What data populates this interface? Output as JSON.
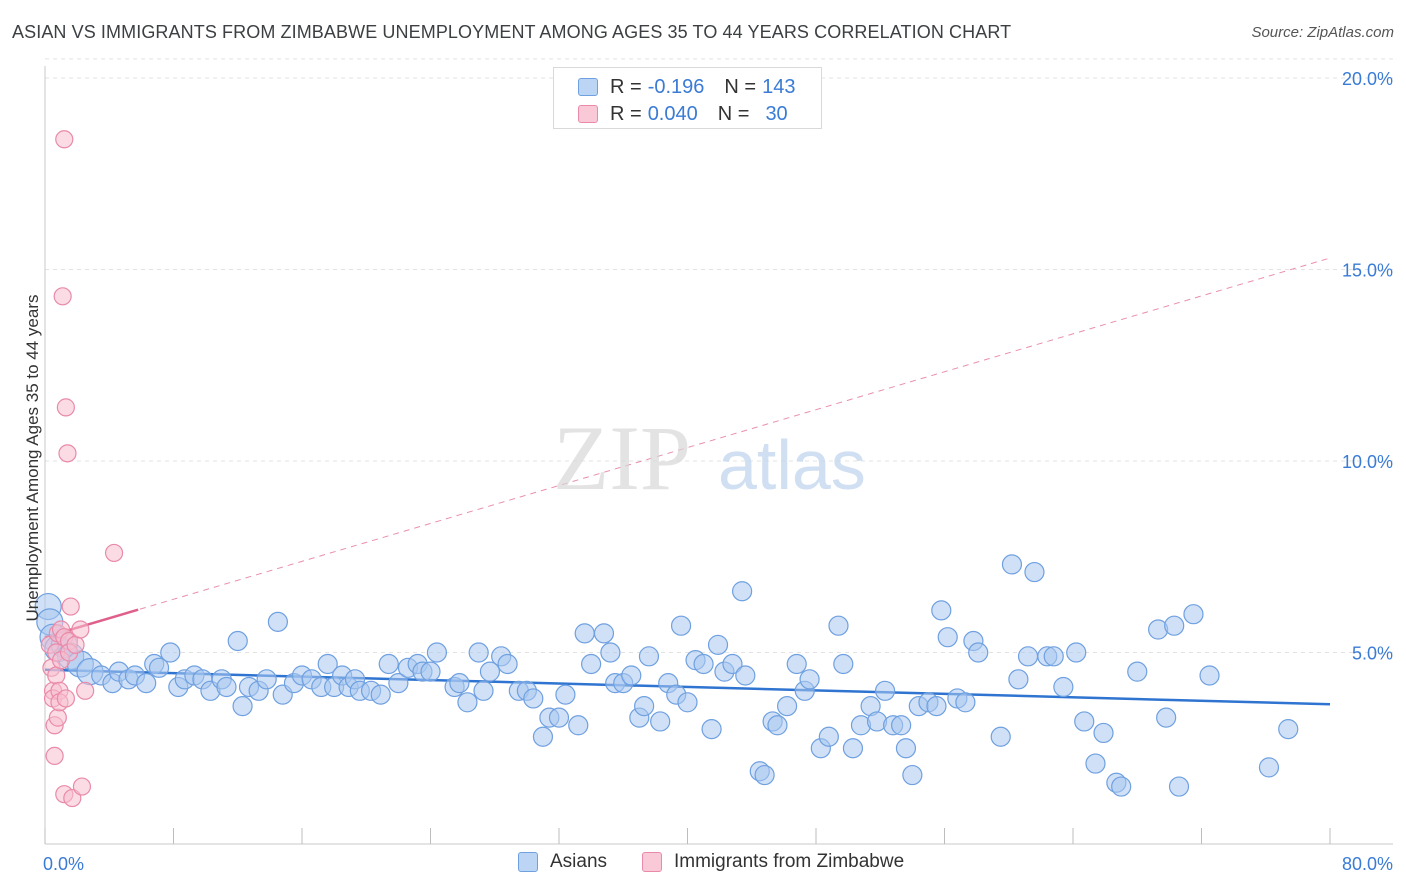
{
  "title": "ASIAN VS IMMIGRANTS FROM ZIMBABWE UNEMPLOYMENT AMONG AGES 35 TO 44 YEARS CORRELATION CHART",
  "source": "Source: ZipAtlas.com",
  "watermark": {
    "zip": "ZIP",
    "atlas": "atlas"
  },
  "legend_top": {
    "rows": [
      {
        "r_label": "R =",
        "r_value": "-0.196",
        "n_label": "N =",
        "n_value": "143",
        "color": "#a9c8f0",
        "border": "#6fa0e0"
      },
      {
        "r_label": "R =",
        "r_value": "0.040",
        "n_label": "N =",
        "n_value": "30",
        "color": "#f7bfd0",
        "border": "#e98aa9"
      }
    ]
  },
  "chart_data": {
    "type": "scatter",
    "title": "ASIAN VS IMMIGRANTS FROM ZIMBABWE UNEMPLOYMENT AMONG AGES 35 TO 44 YEARS CORRELATION CHART",
    "xlabel": "",
    "ylabel": "Unemployment Among Ages 35 to 44 years",
    "xlim": [
      0,
      80
    ],
    "ylim": [
      0,
      20.5
    ],
    "x_tick_labels": [
      "0.0%",
      "80.0%"
    ],
    "y_ticks": [
      5,
      10,
      15,
      20
    ],
    "y_tick_labels": [
      "5.0%",
      "10.0%",
      "15.0%",
      "20.0%"
    ],
    "grid": true,
    "legend_position": "bottom",
    "series": [
      {
        "name": "Asians",
        "color": "#a9c8f0",
        "stroke": "#6fa0e0",
        "trend": {
          "x": [
            0,
            80
          ],
          "y": [
            4.55,
            3.65
          ],
          "color": "#2f74d0",
          "style": "solid"
        },
        "points": [
          [
            0.2,
            6.2
          ],
          [
            0.3,
            5.8
          ],
          [
            0.5,
            5.4
          ],
          [
            0.8,
            5.1
          ],
          [
            1.2,
            5.2
          ],
          [
            1.6,
            4.9
          ],
          [
            2.2,
            4.7
          ],
          [
            2.8,
            4.5
          ],
          [
            3.5,
            4.4
          ],
          [
            4.2,
            4.2
          ],
          [
            4.6,
            4.5
          ],
          [
            5.2,
            4.3
          ],
          [
            5.6,
            4.4
          ],
          [
            6.3,
            4.2
          ],
          [
            6.8,
            4.7
          ],
          [
            7.1,
            4.6
          ],
          [
            7.8,
            5.0
          ],
          [
            8.3,
            4.1
          ],
          [
            8.7,
            4.3
          ],
          [
            9.3,
            4.4
          ],
          [
            9.8,
            4.3
          ],
          [
            10.3,
            4.0
          ],
          [
            11.0,
            4.3
          ],
          [
            11.3,
            4.1
          ],
          [
            12.0,
            5.3
          ],
          [
            12.3,
            3.6
          ],
          [
            12.7,
            4.1
          ],
          [
            13.3,
            4.0
          ],
          [
            13.8,
            4.3
          ],
          [
            14.5,
            5.8
          ],
          [
            14.8,
            3.9
          ],
          [
            15.5,
            4.2
          ],
          [
            16.0,
            4.4
          ],
          [
            16.6,
            4.3
          ],
          [
            17.2,
            4.1
          ],
          [
            17.6,
            4.7
          ],
          [
            18.0,
            4.1
          ],
          [
            18.5,
            4.4
          ],
          [
            18.9,
            4.1
          ],
          [
            19.3,
            4.3
          ],
          [
            19.6,
            4.0
          ],
          [
            20.3,
            4.0
          ],
          [
            20.9,
            3.9
          ],
          [
            21.4,
            4.7
          ],
          [
            22.0,
            4.2
          ],
          [
            22.6,
            4.6
          ],
          [
            23.2,
            4.7
          ],
          [
            23.5,
            4.5
          ],
          [
            24.0,
            4.5
          ],
          [
            24.4,
            5.0
          ],
          [
            25.5,
            4.1
          ],
          [
            25.8,
            4.2
          ],
          [
            26.3,
            3.7
          ],
          [
            27.0,
            5.0
          ],
          [
            27.3,
            4.0
          ],
          [
            27.7,
            4.5
          ],
          [
            28.4,
            4.9
          ],
          [
            28.8,
            4.7
          ],
          [
            29.5,
            4.0
          ],
          [
            30.0,
            4.0
          ],
          [
            30.4,
            3.8
          ],
          [
            31.0,
            2.8
          ],
          [
            31.4,
            3.3
          ],
          [
            32.0,
            3.3
          ],
          [
            32.4,
            3.9
          ],
          [
            33.2,
            3.1
          ],
          [
            33.6,
            5.5
          ],
          [
            34.0,
            4.7
          ],
          [
            34.8,
            5.5
          ],
          [
            35.2,
            5.0
          ],
          [
            35.5,
            4.2
          ],
          [
            36.0,
            4.2
          ],
          [
            36.5,
            4.4
          ],
          [
            37.0,
            3.3
          ],
          [
            37.3,
            3.6
          ],
          [
            37.6,
            4.9
          ],
          [
            38.3,
            3.2
          ],
          [
            38.8,
            4.2
          ],
          [
            39.3,
            3.9
          ],
          [
            39.6,
            5.7
          ],
          [
            40.0,
            3.7
          ],
          [
            40.5,
            4.8
          ],
          [
            41.0,
            4.7
          ],
          [
            41.5,
            3.0
          ],
          [
            41.9,
            5.2
          ],
          [
            42.3,
            4.5
          ],
          [
            42.8,
            4.7
          ],
          [
            43.4,
            6.6
          ],
          [
            43.6,
            4.4
          ],
          [
            44.5,
            1.9
          ],
          [
            44.8,
            1.8
          ],
          [
            45.3,
            3.2
          ],
          [
            45.6,
            3.1
          ],
          [
            46.2,
            3.6
          ],
          [
            46.8,
            4.7
          ],
          [
            47.3,
            4.0
          ],
          [
            47.6,
            4.3
          ],
          [
            48.3,
            2.5
          ],
          [
            48.8,
            2.8
          ],
          [
            49.4,
            5.7
          ],
          [
            49.7,
            4.7
          ],
          [
            50.3,
            2.5
          ],
          [
            50.8,
            3.1
          ],
          [
            51.4,
            3.6
          ],
          [
            51.8,
            3.2
          ],
          [
            52.3,
            4.0
          ],
          [
            52.8,
            3.1
          ],
          [
            53.3,
            3.1
          ],
          [
            53.6,
            2.5
          ],
          [
            54.0,
            1.8
          ],
          [
            54.4,
            3.6
          ],
          [
            55.0,
            3.7
          ],
          [
            55.5,
            3.6
          ],
          [
            55.8,
            6.1
          ],
          [
            56.2,
            5.4
          ],
          [
            56.8,
            3.8
          ],
          [
            57.3,
            3.7
          ],
          [
            57.8,
            5.3
          ],
          [
            58.1,
            5.0
          ],
          [
            59.5,
            2.8
          ],
          [
            60.2,
            7.3
          ],
          [
            60.6,
            4.3
          ],
          [
            61.2,
            4.9
          ],
          [
            61.6,
            7.1
          ],
          [
            62.4,
            4.9
          ],
          [
            62.8,
            4.9
          ],
          [
            63.4,
            4.1
          ],
          [
            64.2,
            5.0
          ],
          [
            64.7,
            3.2
          ],
          [
            65.4,
            2.1
          ],
          [
            65.9,
            2.9
          ],
          [
            66.7,
            1.6
          ],
          [
            67.0,
            1.5
          ],
          [
            68.0,
            4.5
          ],
          [
            69.3,
            5.6
          ],
          [
            69.8,
            3.3
          ],
          [
            70.3,
            5.7
          ],
          [
            70.6,
            1.5
          ],
          [
            71.5,
            6.0
          ],
          [
            72.5,
            4.4
          ],
          [
            76.2,
            2.0
          ],
          [
            77.4,
            3.0
          ]
        ]
      },
      {
        "name": "Immigrants from Zimbabwe",
        "color": "#f7bfd0",
        "stroke": "#e98aa9",
        "trend": {
          "x": [
            0,
            80
          ],
          "y": [
            5.4,
            15.3
          ],
          "color": "#e0608c",
          "style": "dashed",
          "solid_until_x": 5.8
        },
        "points": [
          [
            0.3,
            5.2
          ],
          [
            0.4,
            4.6
          ],
          [
            0.5,
            4.0
          ],
          [
            0.5,
            3.8
          ],
          [
            0.6,
            2.3
          ],
          [
            0.6,
            3.1
          ],
          [
            0.7,
            4.4
          ],
          [
            0.7,
            5.0
          ],
          [
            0.8,
            5.5
          ],
          [
            0.8,
            3.3
          ],
          [
            0.9,
            4.0
          ],
          [
            0.9,
            3.7
          ],
          [
            1.0,
            5.6
          ],
          [
            1.0,
            4.8
          ],
          [
            1.1,
            14.3
          ],
          [
            1.2,
            5.4
          ],
          [
            1.2,
            1.3
          ],
          [
            1.3,
            3.8
          ],
          [
            1.3,
            11.4
          ],
          [
            1.4,
            10.2
          ],
          [
            1.5,
            5.3
          ],
          [
            1.5,
            5.0
          ],
          [
            1.6,
            6.2
          ],
          [
            1.7,
            1.2
          ],
          [
            1.9,
            5.2
          ],
          [
            2.2,
            5.6
          ],
          [
            2.3,
            1.5
          ],
          [
            2.5,
            4.0
          ],
          [
            4.3,
            7.6
          ],
          [
            1.2,
            18.4
          ]
        ]
      }
    ]
  }
}
